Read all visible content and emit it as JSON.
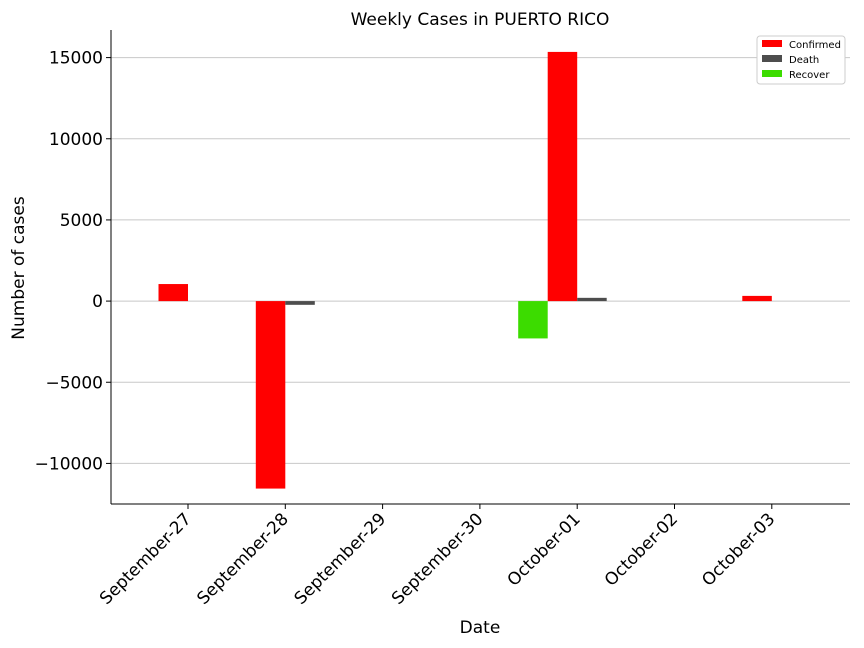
{
  "chart_data": {
    "type": "bar",
    "title": "Weekly Cases in PUERTO RICO",
    "xlabel": "Date",
    "ylabel": "Number of cases",
    "categories": [
      "September-27",
      "September-28",
      "September-29",
      "September-30",
      "October-01",
      "October-02",
      "October-03"
    ],
    "ylim": [
      -12500,
      16700
    ],
    "yticks": [
      -10000,
      -5000,
      0,
      5000,
      10000,
      15000
    ],
    "ytick_labels": [
      "−10000",
      "−5000",
      "0",
      "5000",
      "10000",
      "15000"
    ],
    "grid": "horizontal",
    "legend_position": "top-right",
    "series": [
      {
        "name": "Confirmed",
        "color": "#ff0000",
        "values": [
          1050,
          -11550,
          0,
          0,
          15350,
          0,
          320
        ]
      },
      {
        "name": "Death",
        "color": "#4d4d4d",
        "values": [
          0,
          -230,
          0,
          0,
          200,
          0,
          0
        ]
      },
      {
        "name": "Recover",
        "color": "#3cdc00",
        "values": [
          0,
          0,
          0,
          0,
          -2300,
          0,
          0
        ]
      }
    ]
  }
}
